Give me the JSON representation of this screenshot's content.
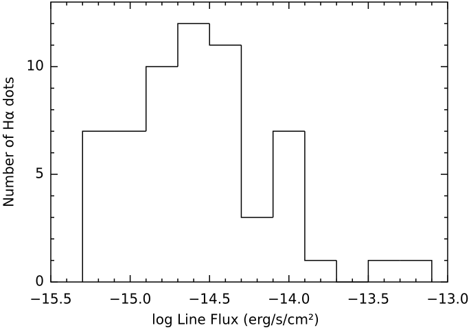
{
  "chart_data": {
    "type": "histogram",
    "x_label": "log Line Flux (erg/s/cm²)",
    "y_label": "Number of Hα dots",
    "bins": [
      -15.3,
      -15.1,
      -14.9,
      -14.7,
      -14.5,
      -14.3,
      -14.1,
      -13.9,
      -13.7,
      -13.5,
      -13.3,
      -13.1
    ],
    "values": [
      7,
      7,
      10,
      12,
      11,
      3,
      7,
      1,
      0,
      1,
      1
    ],
    "color": "#000000",
    "xlim": [
      -15.5,
      -13.0
    ],
    "ylim": [
      0,
      13
    ],
    "xticks": [
      {
        "value": -15.5,
        "label": "−15.5"
      },
      {
        "value": -15.0,
        "label": "−15.0"
      },
      {
        "value": -14.5,
        "label": "−14.5"
      },
      {
        "value": -14.0,
        "label": "−14.0"
      },
      {
        "value": -13.5,
        "label": "−13.5"
      },
      {
        "value": -13.0,
        "label": "−13.0"
      }
    ],
    "yticks": [
      0,
      5,
      10
    ],
    "xminorticks": [
      -15.4,
      -15.3,
      -15.2,
      -15.1,
      -14.9,
      -14.8,
      -14.7,
      -14.6,
      -14.4,
      -14.3,
      -14.2,
      -14.1,
      -13.9,
      -13.8,
      -13.7,
      -13.6,
      -13.4,
      -13.3,
      -13.2,
      -13.1
    ],
    "yminorticks": [
      1,
      2,
      3,
      4,
      6,
      7,
      8,
      9,
      11,
      12
    ]
  }
}
